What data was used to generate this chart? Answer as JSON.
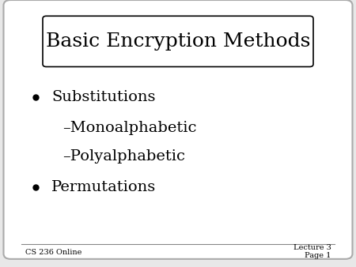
{
  "title": "Basic Encryption Methods",
  "background_color": "#e8e8e8",
  "slide_bg": "#ffffff",
  "bullet_items": [
    {
      "text": "Substitutions",
      "level": 0,
      "bullet": true
    },
    {
      "text": "–Monoalphabetic",
      "level": 1,
      "bullet": false
    },
    {
      "text": "–Polyalphabetic",
      "level": 1,
      "bullet": false
    },
    {
      "text": "Permutations",
      "level": 0,
      "bullet": true
    }
  ],
  "footer_left": "CS 236 Online",
  "footer_right_line1": "Lecture 3",
  "footer_right_line2": "Page 1",
  "title_fontsize": 18,
  "body_fontsize": 14,
  "footer_fontsize": 7,
  "title_box_color": "#ffffff",
  "title_box_edge": "#000000",
  "text_color": "#000000",
  "footer_line_color": "#888888"
}
